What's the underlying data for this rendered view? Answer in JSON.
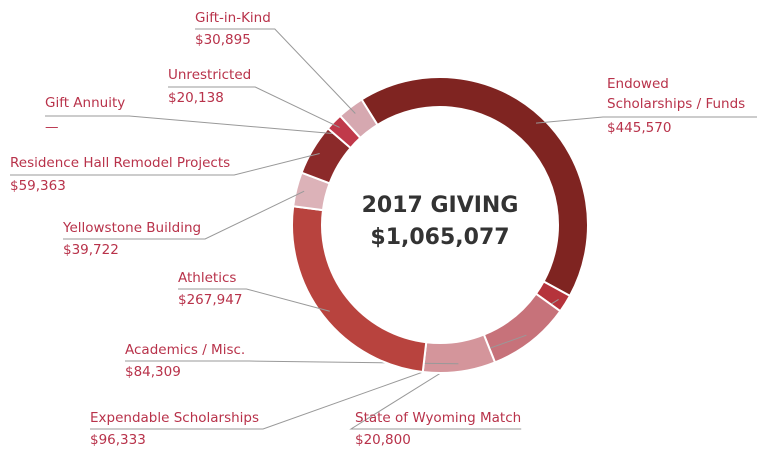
{
  "chart_data": {
    "type": "donut",
    "title": "2017 GIVING",
    "subtitle": "$1,065,077",
    "categories": [
      "Endowed Scholarships / Funds",
      "State of Wyoming Match",
      "Expendable Scholarships",
      "Academics / Misc.",
      "Athletics",
      "Yellowstone Building",
      "Residence Hall Remodel Projects",
      "Gift Annuity",
      "Unrestricted",
      "Gift-in-Kind"
    ],
    "values": [
      445570,
      20800,
      96333,
      84309,
      267947,
      39722,
      59363,
      null,
      20138,
      30895
    ],
    "value_labels": [
      "$445,570",
      "$20,800",
      "$96,333",
      "$84,309",
      "$267,947",
      "$39,722",
      "$59,363",
      "—",
      "$20,138",
      "$30,895"
    ],
    "colors": [
      "#7f2421",
      "#b5333b",
      "#c7727a",
      "#d4959b",
      "#b8433e",
      "#dcb2b8",
      "#8c2a2a",
      "#ecdcdf",
      "#c0394a",
      "#d6a8b0"
    ]
  }
}
